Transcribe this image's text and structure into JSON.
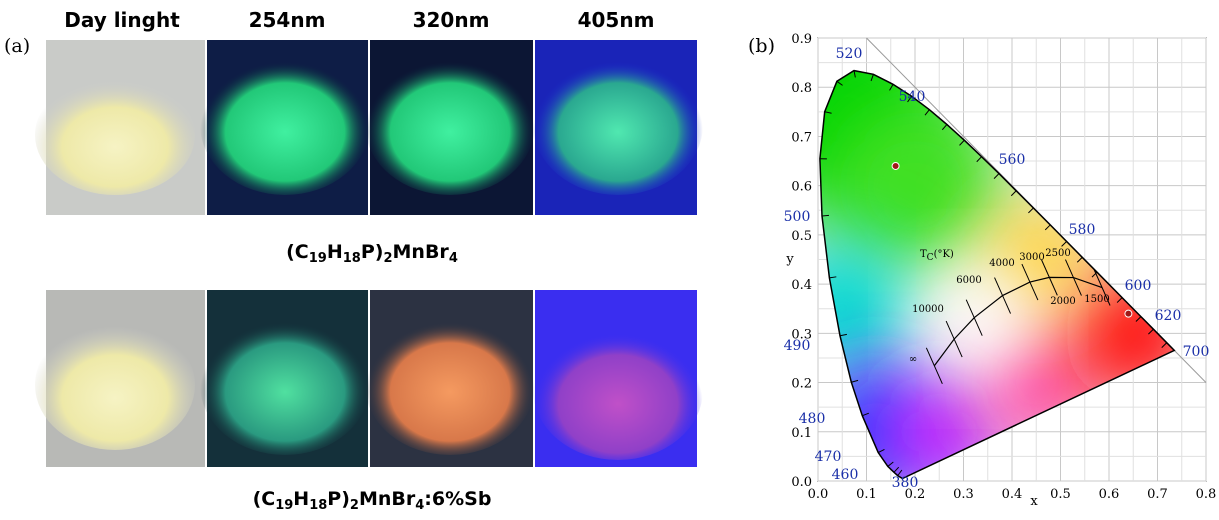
{
  "panel_a": {
    "label": "(a)",
    "headers": [
      "Day linght",
      "254nm",
      "320nm",
      "405nm"
    ],
    "caption_1": [
      "(C",
      "19",
      "H",
      "18",
      "P)",
      "2",
      "MnBr",
      "4"
    ],
    "caption_2": [
      "(C",
      "19",
      "H",
      "18",
      "P)",
      "2",
      "MnBr",
      "4",
      ":6%Sb"
    ]
  },
  "chart_data": {
    "type": "scatter",
    "label": "(b)",
    "x_label": "x",
    "y_label": "y",
    "xlim": [
      0,
      0.8
    ],
    "ylim": [
      0,
      0.9
    ],
    "xticks": [
      {
        "value": 0,
        "label": "0.0"
      },
      {
        "value": 0.1,
        "label": "0.1"
      },
      {
        "value": 0.2,
        "label": "0.2"
      },
      {
        "value": 0.3,
        "label": "0.3"
      },
      {
        "value": 0.4,
        "label": "0.4"
      },
      {
        "value": 0.5,
        "label": "0.5"
      },
      {
        "value": 0.6,
        "label": "0.6"
      },
      {
        "value": 0.7,
        "label": "0.7"
      },
      {
        "value": 0.8,
        "label": "0.8"
      }
    ],
    "yticks": [
      {
        "value": 0,
        "label": "0.0"
      },
      {
        "value": 0.1,
        "label": "0.1"
      },
      {
        "value": 0.2,
        "label": "0.2"
      },
      {
        "value": 0.3,
        "label": "0.3"
      },
      {
        "value": 0.4,
        "label": "0.4"
      },
      {
        "value": 0.5,
        "label": "0.5"
      },
      {
        "value": 0.6,
        "label": "0.6"
      },
      {
        "value": 0.7,
        "label": "0.7"
      },
      {
        "value": 0.8,
        "label": "0.8"
      },
      {
        "value": 0.9,
        "label": "0.9"
      }
    ],
    "grid": true,
    "wavelength_labels": [
      "520",
      "540",
      "560",
      "580",
      "600",
      "620",
      "700",
      "500",
      "490",
      "480",
      "470",
      "460",
      "380"
    ],
    "temperature_title": [
      "T",
      "C",
      "(°K)"
    ],
    "temperature_labels": [
      "10000",
      "6000",
      "4000",
      "3000",
      "2500",
      "2000",
      "1500",
      "∞"
    ],
    "series": [
      {
        "color": "#a01818",
        "x": [
          0.16,
          0.64
        ],
        "y": [
          0.64,
          0.34
        ]
      }
    ]
  }
}
